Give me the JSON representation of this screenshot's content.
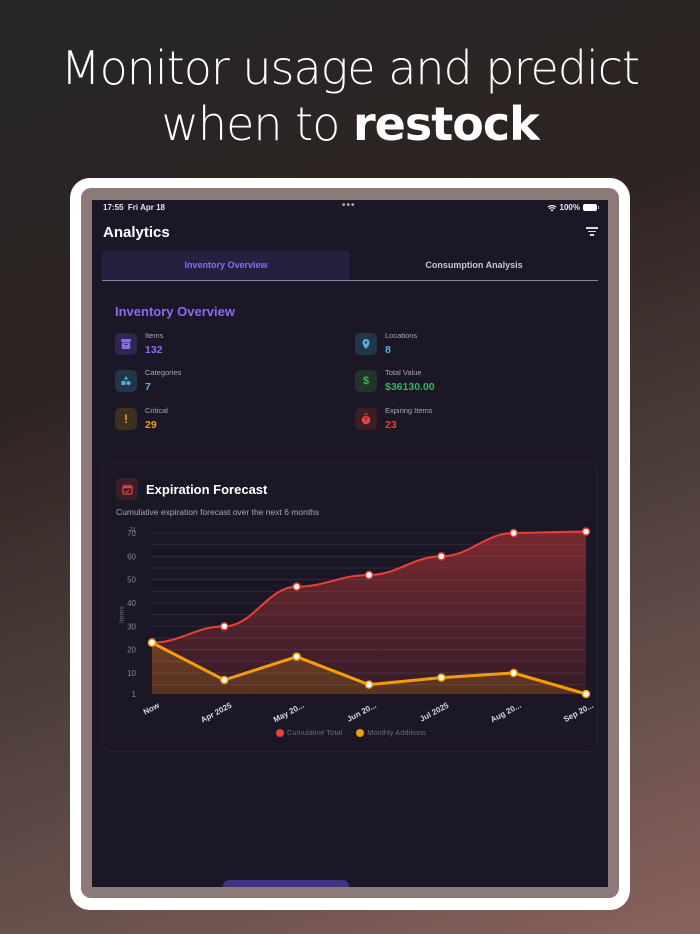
{
  "headline": {
    "line1": "Monitor usage and predict",
    "line2_prefix": "when to ",
    "line2_bold": "restock"
  },
  "status_bar": {
    "time": "17:55",
    "date": "Fri Apr 18",
    "dots": "•••",
    "battery": "100%"
  },
  "nav": {
    "title": "Analytics",
    "filter_icon": "filter-icon"
  },
  "tabs": [
    {
      "label": "Inventory Overview",
      "active": true
    },
    {
      "label": "Consumption Analysis",
      "active": false
    }
  ],
  "overview": {
    "title": "Inventory Overview",
    "stats": [
      {
        "label": "Items",
        "value": "132",
        "icon": "archive-box-icon",
        "color": "#8a6cf0",
        "bg": "#2f2650"
      },
      {
        "label": "Locations",
        "value": "8",
        "icon": "map-pin-icon",
        "color": "#4fb3e0",
        "bg": "#22364a"
      },
      {
        "label": "Categories",
        "value": "7",
        "icon": "shapes-icon",
        "color": "#4fb3e0",
        "bg": "#22364a"
      },
      {
        "label": "Total Value",
        "value": "$36130.00",
        "icon": "dollar-icon",
        "color": "#3fb15a",
        "bg": "#213528"
      },
      {
        "label": "Critical",
        "value": "29",
        "icon": "exclamation-icon",
        "color": "#f0a020",
        "bg": "#3e2f1e"
      },
      {
        "label": "Expiring Items",
        "value": "23",
        "icon": "timer-icon",
        "color": "#e8413a",
        "bg": "#3a1e26"
      }
    ]
  },
  "forecast": {
    "title": "Expiration Forecast",
    "subtitle": "Cumulative expiration forecast over the next 6 months",
    "icon": "calendar-icon"
  },
  "chart_data": {
    "type": "area",
    "title": "Expiration Forecast",
    "subtitle": "Cumulative expiration forecast over the next 6 months",
    "xlabel": "",
    "ylabel": "Items",
    "categories": [
      "Now",
      "Apr 2025",
      "May 20...",
      "Jun 20...",
      "Jul 2025",
      "Aug 20...",
      "Sep 20..."
    ],
    "series": [
      {
        "name": "Cumulative Total",
        "color": "#e8413a",
        "values": [
          23,
          30,
          47,
          52,
          60,
          70,
          71
        ]
      },
      {
        "name": "Monthly Additions",
        "color": "#f59c0c",
        "values": [
          23,
          7,
          17,
          5,
          8,
          10,
          1
        ]
      }
    ],
    "yticks": [
      1,
      10,
      20,
      30,
      40,
      50,
      60,
      70,
      71
    ],
    "ylim": [
      1,
      71
    ],
    "grid": true,
    "legend_position": "bottom"
  }
}
